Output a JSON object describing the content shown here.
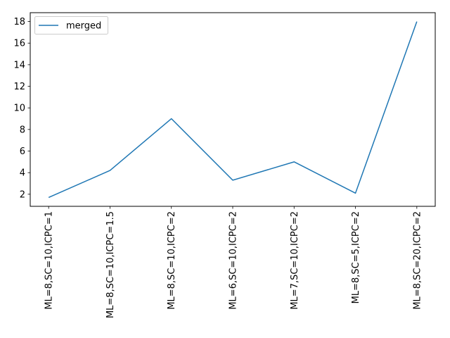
{
  "chart_data": {
    "type": "line",
    "categories": [
      "ML=8,SC=10,ICPC=1",
      "ML=8,SC=10,ICPC=1.5",
      "ML=8,SC=10,ICPC=2",
      "ML=6,SC=10,ICPC=2",
      "ML=7,SC=10,ICPC=2",
      "ML=8,SC=5,ICPC=2",
      "ML=8,SC=20,ICPC=2"
    ],
    "series": [
      {
        "name": "merged",
        "values": [
          1.7,
          4.2,
          9.0,
          3.3,
          5.0,
          2.1,
          18.0
        ],
        "color": "#1f77b4"
      }
    ],
    "title": "",
    "xlabel": "",
    "ylabel": "",
    "ylim": [
      0.88,
      18.82
    ],
    "yticks": [
      2,
      4,
      6,
      8,
      10,
      12,
      14,
      16,
      18
    ],
    "grid": false,
    "legend": "upper-left"
  }
}
